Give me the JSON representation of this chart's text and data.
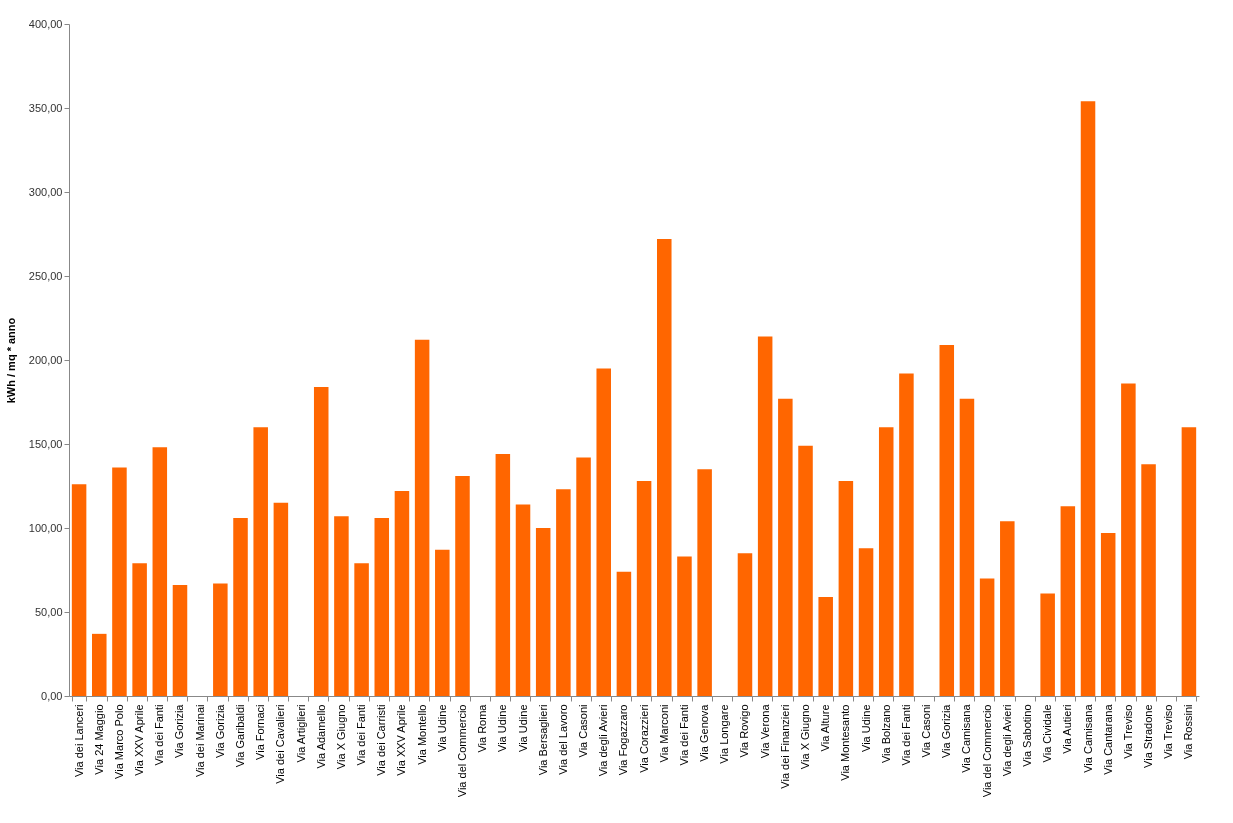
{
  "chart_data": {
    "type": "bar",
    "ylabel": "kWh / mq * anno",
    "categories": [
      "Via dei Lanceri",
      "Via 24 Maggio",
      "Via Marco Polo",
      "Via XXV Aprile",
      "Via dei Fanti",
      "Via Gorizia",
      "Via dei Marinai",
      "Via Gorizia",
      "Via Garibaldi",
      "Via Fornaci",
      "Via dei Cavalieri",
      "Via Artiglieri",
      "Via Adamello",
      "Via X Giugno",
      "Via dei Fanti",
      "Via dei Carristi",
      "Via XXV Aprile",
      "Via Montello",
      "Via Udine",
      "Via del Commercio",
      "Via Roma",
      "Via Udine",
      "Via Udine",
      "Via Bersaglieri",
      "Via del Lavoro",
      "Via Casoni",
      "Via degli Avieri",
      "Via Fogazzaro",
      "Via Corazzieri",
      "Via Marconi",
      "Via dei Fanti",
      "Via Genova",
      "Via Longare",
      "Via Rovigo",
      "Via Verona",
      "Via dei Finanzieri",
      "Via X Giugno",
      "Via Alture",
      "Via Montesanto",
      "Via Udine",
      "Via Bolzano",
      "Via dei Fanti",
      "Via Casoni",
      "Via Gorizia",
      "Via Camisana",
      "Via del Commercio",
      "Via degli Avieri",
      "Via Sabotino",
      "Via Cividale",
      "Via Autieri",
      "Via Camisana",
      "Via Cantarana",
      "Via Treviso",
      "Via Stradone",
      "Via Treviso",
      "Via Rossini"
    ],
    "values": [
      126,
      37,
      136,
      79,
      148,
      66,
      null,
      67,
      106,
      160,
      115,
      null,
      184,
      107,
      79,
      106,
      122,
      212,
      87,
      131,
      null,
      144,
      114,
      100,
      123,
      142,
      195,
      74,
      128,
      272,
      83,
      135,
      null,
      85,
      214,
      177,
      149,
      59,
      128,
      88,
      160,
      192,
      null,
      209,
      177,
      70,
      104,
      null,
      61,
      113,
      354,
      97,
      186,
      138,
      null,
      160
    ],
    "color": "#ff6600",
    "ylim": [
      0,
      400
    ],
    "yticks": [
      {
        "value": 0,
        "label": "0,00"
      },
      {
        "value": 50,
        "label": "50,00"
      },
      {
        "value": 100,
        "label": "100,00"
      },
      {
        "value": 150,
        "label": "150,00"
      },
      {
        "value": 200,
        "label": "200,00"
      },
      {
        "value": 250,
        "label": "250,00"
      },
      {
        "value": 300,
        "label": "300,00"
      },
      {
        "value": 350,
        "label": "350,00"
      },
      {
        "value": 400,
        "label": "400,00"
      }
    ]
  }
}
